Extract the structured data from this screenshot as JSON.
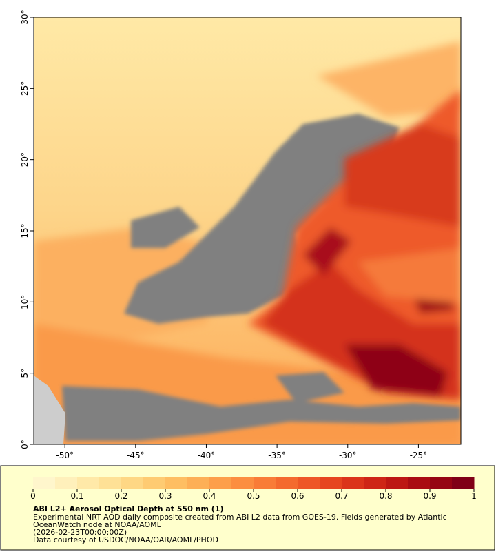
{
  "map": {
    "xlim": [
      -52.2,
      -22
    ],
    "ylim": [
      0,
      30
    ],
    "xticks": [
      {
        "value": -50,
        "label": "-50°"
      },
      {
        "value": -45,
        "label": "-45°"
      },
      {
        "value": -40,
        "label": "-40°"
      },
      {
        "value": -35,
        "label": "-35°"
      },
      {
        "value": -30,
        "label": "-30°"
      },
      {
        "value": -25,
        "label": "-25°"
      }
    ],
    "yticks": [
      {
        "value": 0,
        "label": "0°"
      },
      {
        "value": 5,
        "label": "5°"
      },
      {
        "value": 10,
        "label": "10°"
      },
      {
        "value": 15,
        "label": "15°"
      },
      {
        "value": 20,
        "label": "20°"
      },
      {
        "value": 25,
        "label": "25°"
      },
      {
        "value": 30,
        "label": "30°"
      }
    ]
  },
  "colorbar": {
    "range": [
      0,
      1
    ],
    "ticks": [
      0,
      0.1,
      0.2,
      0.3,
      0.4,
      0.5,
      0.6,
      0.7,
      0.8,
      0.9,
      1
    ],
    "colors": [
      "#fff6cc",
      "#fff0bb",
      "#ffe9a8",
      "#fee196",
      "#fed784",
      "#fecb72",
      "#febe62",
      "#fdaf56",
      "#fd9f4a",
      "#fc8e40",
      "#f97c37",
      "#f46a2e",
      "#ee5726",
      "#e6451f",
      "#db341a",
      "#ce2516",
      "#bd1713",
      "#aa0c12",
      "#960513",
      "#800016"
    ]
  },
  "legend": {
    "title": "ABI L2+ Aerosol Optical Depth at 550 nm (1)",
    "lines": [
      "Experimental NRT AOD daily composite created from ABI L2 data from GOES-19. Fields generated by Atlantic",
      "OceanWatch node at NOAA/AOML",
      "(2026-02-23T00:00:00Z)",
      "Data courtesy of USDOC/NOAA/OAR/AOML/PHOD"
    ]
  }
}
